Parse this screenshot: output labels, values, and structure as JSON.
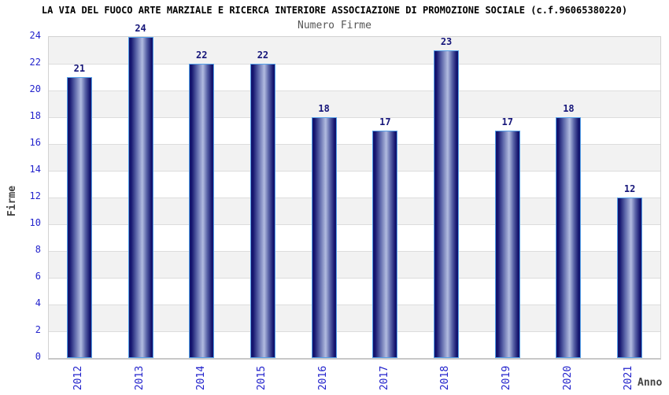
{
  "title": "LA VIA DEL FUOCO ARTE MARZIALE E RICERCA INTERIORE ASSOCIAZIONE DI PROMOZIONE SOCIALE (c.f.96065380220)",
  "subtitle": "Numero Firme",
  "chart_data": {
    "type": "bar",
    "title": "Numero Firme",
    "categories": [
      "2012",
      "2013",
      "2014",
      "2015",
      "2016",
      "2017",
      "2018",
      "2019",
      "2020",
      "2021"
    ],
    "values": [
      21,
      24,
      22,
      22,
      18,
      17,
      23,
      17,
      18,
      12
    ],
    "xlabel": "Anno",
    "ylabel": "Firme",
    "ylim": [
      0,
      24
    ],
    "ytick_step": 2,
    "grid": true,
    "legend": "none",
    "plot_bands_alternating": true,
    "colors": {
      "title": "#000000",
      "subtitle": "#555555",
      "tick_label": "#2323cc",
      "value_label": "#16167a",
      "axis_title": "#444444",
      "band_alt": "#f2f2f2",
      "band_main": "#ffffff",
      "gridline": "#dddddd",
      "bar_dark": "#14146e",
      "bar_mid": "#5a64a8",
      "bar_light": "#b2bce0",
      "bar_border": "#54a0e8"
    }
  }
}
